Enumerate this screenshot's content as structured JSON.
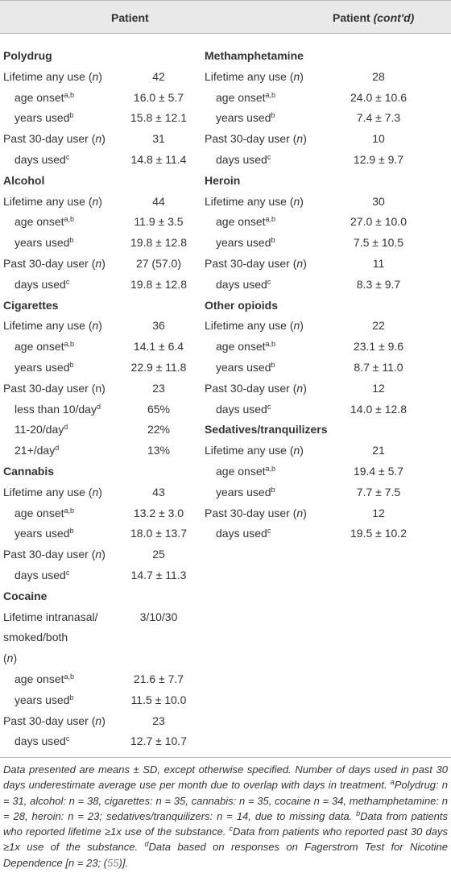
{
  "header": {
    "left": "Patient",
    "right": "Patient",
    "right_cont": "(cont'd)"
  },
  "columns": [
    [
      {
        "title": "Polydrug",
        "rows": [
          {
            "label": [
              [
                "Lifetime any use (",
                {
                  "i": "n"
                },
                ")"
              ]
            ],
            "value": "42"
          },
          {
            "label": [
              [
                "age onset",
                {
                  "sup": "a,b"
                }
              ]
            ],
            "value": "16.0 ± 5.7",
            "indent": true
          },
          {
            "label": [
              [
                "years used",
                {
                  "sup": "b"
                }
              ]
            ],
            "value": "15.8 ± 12.1",
            "indent": true
          },
          {
            "label": [
              [
                "Past 30-day user (",
                {
                  "i": "n"
                },
                ")"
              ]
            ],
            "value": "31"
          },
          {
            "label": [
              [
                "days used",
                {
                  "sup": "c"
                }
              ]
            ],
            "value": "14.8 ± 11.4",
            "indent": true
          }
        ]
      },
      {
        "title": "Alcohol",
        "rows": [
          {
            "label": [
              [
                "Lifetime any use (",
                {
                  "i": "n"
                },
                ")"
              ]
            ],
            "value": "44"
          },
          {
            "label": [
              [
                "age onset",
                {
                  "sup": "a,b"
                }
              ]
            ],
            "value": "11.9 ± 3.5",
            "indent": true
          },
          {
            "label": [
              [
                "years used",
                {
                  "sup": "b"
                }
              ]
            ],
            "value": "19.8 ± 12.8",
            "indent": true
          },
          {
            "label": [
              [
                "Past 30-day user (",
                {
                  "i": "n"
                },
                ")"
              ]
            ],
            "value": "27 (57.0)"
          },
          {
            "label": [
              [
                "days used",
                {
                  "sup": "c"
                }
              ]
            ],
            "value": "19.8 ± 12.8",
            "indent": true
          }
        ]
      },
      {
        "title": "Cigarettes",
        "rows": [
          {
            "label": [
              [
                "Lifetime any use (",
                {
                  "i": "n"
                },
                ")"
              ]
            ],
            "value": "36"
          },
          {
            "label": [
              [
                "age onset",
                {
                  "sup": "a,b"
                }
              ]
            ],
            "value": "14.1 ± 6.4",
            "indent": true
          },
          {
            "label": [
              [
                "years used",
                {
                  "sup": "b"
                }
              ]
            ],
            "value": "22.9 ± 11.8",
            "indent": true
          },
          {
            "label": [
              [
                "Past 30-day user (n)"
              ]
            ],
            "value": "23"
          },
          {
            "label": [
              [
                "less than 10/day",
                {
                  "sup": "d"
                }
              ]
            ],
            "value": "65%",
            "indent": true
          },
          {
            "label": [
              [
                "11-20/day",
                {
                  "sup": "d"
                }
              ]
            ],
            "value": "22%",
            "indent": true
          },
          {
            "label": [
              [
                "21+/day",
                {
                  "sup": "d"
                }
              ]
            ],
            "value": "13%",
            "indent": true
          }
        ]
      },
      {
        "title": "Cannabis",
        "rows": [
          {
            "label": [
              [
                "Lifetime any use (",
                {
                  "i": "n"
                },
                ")"
              ]
            ],
            "value": "43"
          },
          {
            "label": [
              [
                "age onset",
                {
                  "sup": "a,b"
                }
              ]
            ],
            "value": "13.2 ± 3.0",
            "indent": true
          },
          {
            "label": [
              [
                "years used",
                {
                  "sup": "b"
                }
              ]
            ],
            "value": "18.0 ± 13.7",
            "indent": true
          },
          {
            "label": [
              [
                "Past 30-day user (",
                {
                  "i": "n"
                },
                ")"
              ]
            ],
            "value": "25"
          },
          {
            "label": [
              [
                "days used",
                {
                  "sup": "c"
                }
              ]
            ],
            "value": "14.7 ± 11.3",
            "indent": true
          }
        ]
      },
      {
        "title": "Cocaine",
        "rows": [
          {
            "label": [
              [
                "Lifetime intranasal/"
              ],
              [
                "smoked/both"
              ],
              [
                "(",
                {
                  "i": "n"
                },
                ")"
              ]
            ],
            "value": "3/10/30"
          },
          {
            "label": [
              [
                "age onset",
                {
                  "sup": "a,b"
                }
              ]
            ],
            "value": "21.6 ± 7.7",
            "indent": true
          },
          {
            "label": [
              [
                "years used",
                {
                  "sup": "b"
                }
              ]
            ],
            "value": "11.5 ± 10.0",
            "indent": true
          },
          {
            "label": [
              [
                "Past 30-day user (",
                {
                  "i": "n"
                },
                ")"
              ]
            ],
            "value": "23"
          },
          {
            "label": [
              [
                "days used",
                {
                  "sup": "c"
                }
              ]
            ],
            "value": "12.7 ± 10.7",
            "indent": true
          }
        ]
      }
    ],
    [
      {
        "title": "Methamphetamine",
        "rows": [
          {
            "label": [
              [
                "Lifetime any use (",
                {
                  "i": "n"
                },
                ")"
              ]
            ],
            "value": "28"
          },
          {
            "label": [
              [
                "age onset",
                {
                  "sup": "a,b"
                }
              ]
            ],
            "value": "24.0 ± 10.6",
            "indent": true
          },
          {
            "label": [
              [
                "years used",
                {
                  "sup": "b"
                }
              ]
            ],
            "value": "7.4 ± 7.3",
            "indent": true
          },
          {
            "label": [
              [
                "Past 30-day user (",
                {
                  "i": "n"
                },
                ")"
              ]
            ],
            "value": "10"
          },
          {
            "label": [
              [
                "days used",
                {
                  "sup": "c"
                }
              ]
            ],
            "value": "12.9 ± 9.7",
            "indent": true
          }
        ]
      },
      {
        "title": "Heroin",
        "rows": [
          {
            "label": [
              [
                "Lifetime any use (",
                {
                  "i": "n"
                },
                ")"
              ]
            ],
            "value": "30"
          },
          {
            "label": [
              [
                "age onset",
                {
                  "sup": "a,b"
                }
              ]
            ],
            "value": "27.0 ± 10.0",
            "indent": true
          },
          {
            "label": [
              [
                "years used",
                {
                  "sup": "b"
                }
              ]
            ],
            "value": "7.5 ± 10.5",
            "indent": true
          },
          {
            "label": [
              [
                "Past 30-day user (",
                {
                  "i": "n"
                },
                ")"
              ]
            ],
            "value": "11"
          },
          {
            "label": [
              [
                "days used",
                {
                  "sup": "c"
                }
              ]
            ],
            "value": "8.3 ± 9.7",
            "indent": true
          }
        ]
      },
      {
        "title": "Other opioids",
        "rows": [
          {
            "label": [
              [
                "Lifetime any use (",
                {
                  "i": "n"
                },
                ")"
              ]
            ],
            "value": "22"
          },
          {
            "label": [
              [
                "age onset",
                {
                  "sup": "a,b"
                }
              ]
            ],
            "value": "23.1 ± 9.6",
            "indent": true
          },
          {
            "label": [
              [
                "years used",
                {
                  "sup": "b"
                }
              ]
            ],
            "value": "8.7 ± 11.0",
            "indent": true
          },
          {
            "label": [
              [
                "Past 30-day user (",
                {
                  "i": "n"
                },
                ")"
              ]
            ],
            "value": "12"
          },
          {
            "label": [
              [
                "days used",
                {
                  "sup": "c"
                }
              ]
            ],
            "value": "14.0 ± 12.8",
            "indent": true
          }
        ]
      },
      {
        "title": "Sedatives/tranquilizers",
        "rows": [
          {
            "label": [
              [
                "Lifetime any use (",
                {
                  "i": "n"
                },
                ")"
              ]
            ],
            "value": "21"
          },
          {
            "label": [
              [
                "age onset",
                {
                  "sup": "a,b"
                }
              ]
            ],
            "value": "19.4 ± 5.7",
            "indent": true
          },
          {
            "label": [
              [
                "years used",
                {
                  "sup": "b"
                }
              ]
            ],
            "value": "7.7 ± 7.5",
            "indent": true
          },
          {
            "label": [
              [
                "Past 30-day user (",
                {
                  "i": "n"
                },
                ")"
              ]
            ],
            "value": "12"
          },
          {
            "label": [
              [
                "days used",
                {
                  "sup": "c"
                }
              ]
            ],
            "value": "19.5 ± 10.2",
            "indent": true
          }
        ]
      }
    ]
  ],
  "footnote": [
    "Data presented are means ± SD, except otherwise specified. Number of days used in past 30 days underestimate average use per month due to overlap with days in treatment. ",
    {
      "sup": "a"
    },
    "Polydrug: n = 31, alcohol: n = 38, cigarettes: n = 35, cannabis: n = 35, cocaine n = 34, methamphetamine: n = 28, heroin: n = 23; sedatives/tranquilizers: n = 14, due to missing data. ",
    {
      "sup": "b"
    },
    "Data from patients who reported lifetime ≥1x use of the substance. ",
    {
      "sup": "c"
    },
    "Data from patients who reported past 30 days ≥1x use of the substance. ",
    {
      "sup": "d"
    },
    "Data based on responses on Fagerstrom Test for Nicotine Dependence [n = 23; (",
    {
      "link": "55"
    },
    ")]."
  ]
}
